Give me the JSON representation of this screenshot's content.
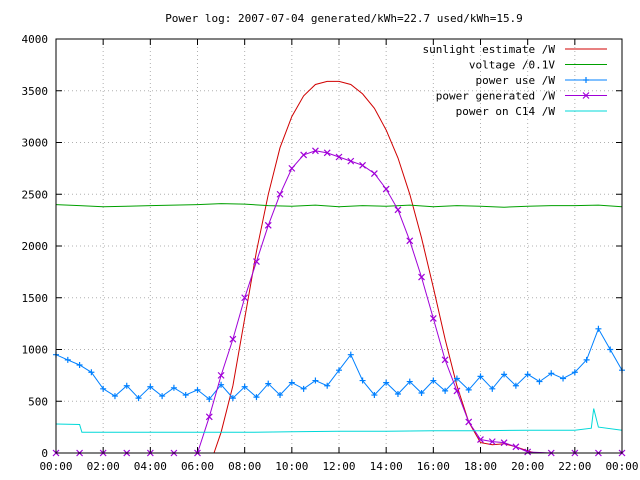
{
  "chart_data": {
    "type": "line",
    "title": "Power log: 2007-07-04 generated/kWh=22.7 used/kWh=15.9",
    "xlabel": "",
    "ylabel": "",
    "xlim": [
      0,
      24
    ],
    "ylim": [
      0,
      4000
    ],
    "yticks": [
      0,
      500,
      1000,
      1500,
      2000,
      2500,
      3000,
      3500,
      4000
    ],
    "xticks": [
      "00:00",
      "02:00",
      "04:00",
      "06:00",
      "08:00",
      "10:00",
      "12:00",
      "14:00",
      "16:00",
      "18:00",
      "20:00",
      "22:00",
      "00:00"
    ],
    "grid": true,
    "legend_position": "top-right",
    "series": [
      {
        "name": "sunlight estimate /W",
        "color": "#d00000",
        "style": "line",
        "x": [
          6.7,
          7.0,
          7.5,
          8.0,
          8.5,
          9.0,
          9.5,
          10.0,
          10.5,
          11.0,
          11.5,
          12.0,
          12.5,
          13.0,
          13.5,
          14.0,
          14.5,
          15.0,
          15.5,
          16.0,
          16.5,
          17.0,
          17.5,
          18.0,
          18.5,
          19.0,
          19.5,
          20.0,
          20.3
        ],
        "y": [
          0,
          200,
          650,
          1300,
          1950,
          2500,
          2950,
          3250,
          3450,
          3560,
          3590,
          3590,
          3560,
          3470,
          3330,
          3120,
          2850,
          2500,
          2080,
          1600,
          1100,
          650,
          300,
          100,
          80,
          90,
          60,
          20,
          0
        ]
      },
      {
        "name": "voltage /0.1V",
        "color": "#00a000",
        "style": "line",
        "x": [
          0,
          1,
          2,
          3,
          4,
          5,
          6,
          7,
          8,
          9,
          10,
          11,
          12,
          13,
          14,
          15,
          16,
          17,
          18,
          19,
          20,
          21,
          22,
          23,
          24
        ],
        "y": [
          2400,
          2390,
          2380,
          2385,
          2390,
          2395,
          2400,
          2410,
          2405,
          2390,
          2385,
          2395,
          2380,
          2390,
          2385,
          2395,
          2380,
          2390,
          2385,
          2375,
          2385,
          2390,
          2390,
          2395,
          2380
        ]
      },
      {
        "name": "power use /W",
        "color": "#0080ff",
        "style": "linespoints",
        "x": [
          0,
          0.5,
          1.0,
          1.5,
          2.0,
          2.5,
          3.0,
          3.5,
          4.0,
          4.5,
          5.0,
          5.5,
          6.0,
          6.5,
          7.0,
          7.5,
          8.0,
          8.5,
          9.0,
          9.5,
          10.0,
          10.5,
          11.0,
          11.5,
          12.0,
          12.5,
          13.0,
          13.5,
          14.0,
          14.5,
          15.0,
          15.5,
          16.0,
          16.5,
          17.0,
          17.5,
          18.0,
          18.5,
          19.0,
          19.5,
          20.0,
          20.5,
          21.0,
          21.5,
          22.0,
          22.5,
          23.0,
          23.5,
          24.0
        ],
        "y": [
          950,
          900,
          850,
          780,
          620,
          550,
          650,
          530,
          640,
          550,
          630,
          560,
          610,
          520,
          660,
          530,
          640,
          540,
          670,
          560,
          680,
          620,
          700,
          650,
          800,
          950,
          700,
          560,
          680,
          570,
          690,
          580,
          700,
          600,
          720,
          610,
          740,
          620,
          760,
          650,
          760,
          690,
          770,
          720,
          780,
          900,
          1200,
          1000,
          800
        ]
      },
      {
        "name": "power generated /W",
        "color": "#a000d8",
        "style": "linespoints",
        "x": [
          0,
          1,
          2,
          3,
          4,
          5,
          6.0,
          6.5,
          7.0,
          7.5,
          8.0,
          8.5,
          9.0,
          9.5,
          10.0,
          10.5,
          11.0,
          11.5,
          12.0,
          12.5,
          13.0,
          13.5,
          14.0,
          14.5,
          15.0,
          15.5,
          16.0,
          16.5,
          17.0,
          17.5,
          18.0,
          18.5,
          19.0,
          19.5,
          20.0,
          21,
          22,
          23,
          24
        ],
        "y": [
          0,
          0,
          0,
          0,
          0,
          0,
          0,
          350,
          750,
          1100,
          1500,
          1850,
          2200,
          2500,
          2750,
          2880,
          2920,
          2900,
          2860,
          2820,
          2780,
          2700,
          2550,
          2350,
          2050,
          1700,
          1300,
          900,
          600,
          300,
          130,
          110,
          100,
          60,
          10,
          0,
          0,
          0,
          0
        ]
      },
      {
        "name": "power on C14 /W",
        "color": "#00d8d8",
        "style": "line",
        "x": [
          0,
          1.0,
          1.1,
          2,
          4,
          6,
          8,
          10,
          12,
          14,
          16,
          18,
          20,
          22,
          22.7,
          22.8,
          23.0,
          24
        ],
        "y": [
          280,
          275,
          200,
          200,
          200,
          200,
          200,
          205,
          210,
          210,
          215,
          215,
          220,
          220,
          240,
          430,
          250,
          220
        ]
      }
    ]
  }
}
